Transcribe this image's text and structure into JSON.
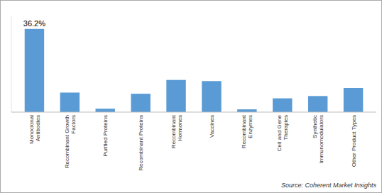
{
  "chart_data": {
    "type": "bar",
    "categories": [
      "Monoclonal\nAntibodies",
      "Recombinant Growth\nFactors",
      "Purified Proteins",
      "Recombinant Proteins",
      "Recombinant\nHormones",
      "Vaccines",
      "Recombinant\nEnzymes",
      "Cell and Gene\nTherapies",
      "Synthetic\nImmunomodulators",
      "Other Product Types"
    ],
    "values": [
      36.2,
      8.5,
      1.5,
      8.0,
      14.0,
      13.5,
      1.2,
      6.0,
      7.0,
      10.5
    ],
    "value_labels": [
      "36.2%",
      null,
      null,
      null,
      null,
      null,
      null,
      null,
      null,
      null
    ],
    "data_labels": true,
    "color": "#5b9bd5",
    "ylim": [
      0,
      42
    ],
    "grid": false,
    "tick_labels": "x",
    "source": "Source: Coherent Market Insights"
  }
}
